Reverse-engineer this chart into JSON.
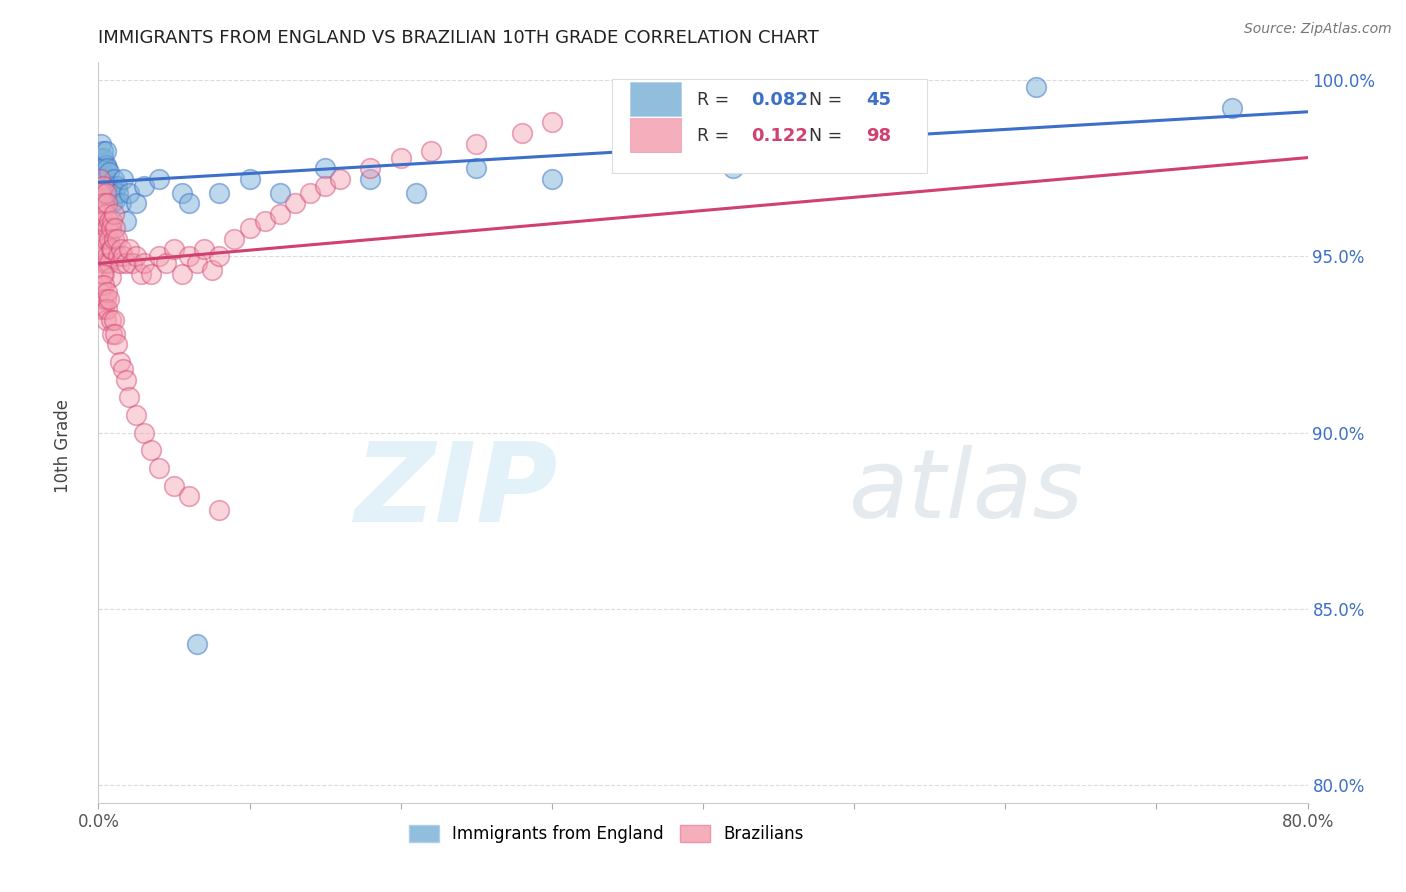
{
  "title": "IMMIGRANTS FROM ENGLAND VS BRAZILIAN 10TH GRADE CORRELATION CHART",
  "source": "Source: ZipAtlas.com",
  "ylabel": "10th Grade",
  "xlim": [
    0.0,
    0.8
  ],
  "ylim": [
    0.795,
    1.005
  ],
  "xticks": [
    0.0,
    0.1,
    0.2,
    0.3,
    0.4,
    0.5,
    0.6,
    0.7,
    0.8
  ],
  "xtick_labels": [
    "0.0%",
    "",
    "",
    "",
    "",
    "",
    "",
    "",
    "80.0%"
  ],
  "yticks": [
    0.8,
    0.85,
    0.9,
    0.95,
    1.0
  ],
  "ytick_labels": [
    "80.0%",
    "85.0%",
    "90.0%",
    "95.0%",
    "100.0%"
  ],
  "blue_R": 0.082,
  "blue_N": 45,
  "pink_R": 0.122,
  "pink_N": 98,
  "blue_color": "#7EB3D8",
  "blue_line_color": "#3B6FC9",
  "pink_color": "#F4A0B0",
  "pink_line_color": "#D04070",
  "blue_label": "Immigrants from England",
  "pink_label": "Brazilians",
  "watermark_zip": "ZIP",
  "watermark_atlas": "atlas",
  "background_color": "#FFFFFF",
  "blue_x": [
    0.001,
    0.002,
    0.002,
    0.003,
    0.003,
    0.003,
    0.004,
    0.004,
    0.005,
    0.005,
    0.005,
    0.006,
    0.006,
    0.007,
    0.007,
    0.008,
    0.009,
    0.01,
    0.01,
    0.011,
    0.012,
    0.013,
    0.015,
    0.016,
    0.018,
    0.02,
    0.025,
    0.03,
    0.04,
    0.055,
    0.06,
    0.065,
    0.08,
    0.1,
    0.12,
    0.15,
    0.18,
    0.21,
    0.25,
    0.3,
    0.35,
    0.42,
    0.52,
    0.62,
    0.75
  ],
  "blue_y": [
    0.978,
    0.982,
    0.975,
    0.972,
    0.978,
    0.98,
    0.975,
    0.968,
    0.976,
    0.972,
    0.98,
    0.97,
    0.975,
    0.968,
    0.974,
    0.97,
    0.965,
    0.972,
    0.968,
    0.966,
    0.97,
    0.968,
    0.965,
    0.972,
    0.96,
    0.968,
    0.965,
    0.97,
    0.972,
    0.968,
    0.965,
    0.84,
    0.968,
    0.972,
    0.968,
    0.975,
    0.972,
    0.968,
    0.975,
    0.972,
    0.978,
    0.975,
    0.982,
    0.998,
    0.992
  ],
  "pink_x": [
    0.001,
    0.001,
    0.001,
    0.002,
    0.002,
    0.002,
    0.002,
    0.003,
    0.003,
    0.003,
    0.003,
    0.003,
    0.004,
    0.004,
    0.004,
    0.004,
    0.005,
    0.005,
    0.005,
    0.005,
    0.006,
    0.006,
    0.006,
    0.007,
    0.007,
    0.007,
    0.008,
    0.008,
    0.008,
    0.009,
    0.009,
    0.01,
    0.01,
    0.011,
    0.012,
    0.013,
    0.014,
    0.015,
    0.016,
    0.018,
    0.02,
    0.022,
    0.025,
    0.028,
    0.03,
    0.035,
    0.04,
    0.045,
    0.05,
    0.055,
    0.06,
    0.065,
    0.07,
    0.075,
    0.08,
    0.09,
    0.1,
    0.11,
    0.12,
    0.13,
    0.14,
    0.15,
    0.16,
    0.18,
    0.2,
    0.22,
    0.25,
    0.28,
    0.3,
    0.35,
    0.001,
    0.002,
    0.002,
    0.003,
    0.003,
    0.004,
    0.004,
    0.005,
    0.005,
    0.006,
    0.006,
    0.007,
    0.008,
    0.009,
    0.01,
    0.011,
    0.012,
    0.014,
    0.016,
    0.018,
    0.02,
    0.025,
    0.03,
    0.035,
    0.04,
    0.05,
    0.06,
    0.08
  ],
  "pink_y": [
    0.972,
    0.968,
    0.96,
    0.968,
    0.962,
    0.958,
    0.952,
    0.97,
    0.965,
    0.96,
    0.955,
    0.948,
    0.965,
    0.96,
    0.952,
    0.945,
    0.968,
    0.962,
    0.955,
    0.948,
    0.965,
    0.958,
    0.95,
    0.96,
    0.955,
    0.948,
    0.958,
    0.952,
    0.944,
    0.96,
    0.952,
    0.962,
    0.955,
    0.958,
    0.955,
    0.95,
    0.948,
    0.952,
    0.95,
    0.948,
    0.952,
    0.948,
    0.95,
    0.945,
    0.948,
    0.945,
    0.95,
    0.948,
    0.952,
    0.945,
    0.95,
    0.948,
    0.952,
    0.946,
    0.95,
    0.955,
    0.958,
    0.96,
    0.962,
    0.965,
    0.968,
    0.97,
    0.972,
    0.975,
    0.978,
    0.98,
    0.982,
    0.985,
    0.988,
    0.992,
    0.94,
    0.942,
    0.935,
    0.945,
    0.938,
    0.942,
    0.935,
    0.938,
    0.932,
    0.94,
    0.935,
    0.938,
    0.932,
    0.928,
    0.932,
    0.928,
    0.925,
    0.92,
    0.918,
    0.915,
    0.91,
    0.905,
    0.9,
    0.895,
    0.89,
    0.885,
    0.882,
    0.878
  ]
}
